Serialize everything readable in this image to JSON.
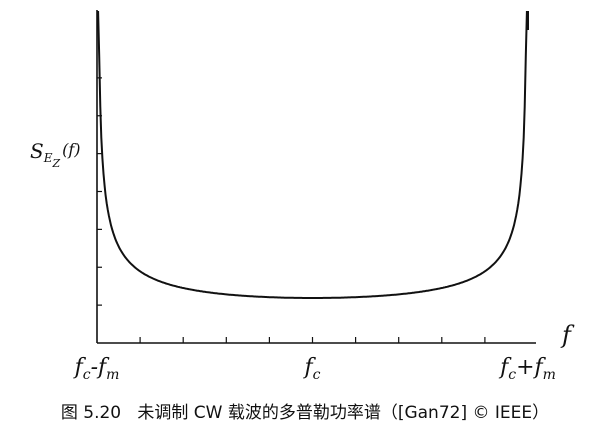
{
  "caption": {
    "figure_no": "图 5.20",
    "text": "未调制 CW 载波的多普勒功率谱（[Gan72] © IEEE）"
  },
  "chart_data": {
    "type": "line",
    "title": "",
    "xlabel": "f",
    "ylabel_base": "S",
    "ylabel_sub": "E",
    "ylabel_subsub": "Z",
    "ylabel_arg": "(f)",
    "x_ticks": [
      {
        "value": -1,
        "base": "f",
        "sub": "c",
        "mid": "-f",
        "sub2": "m"
      },
      {
        "value": 0,
        "base": "f",
        "sub": "c",
        "mid": "",
        "sub2": ""
      },
      {
        "value": 1,
        "base": "f",
        "sub": "c",
        "mid": "+f",
        "sub2": "m"
      }
    ],
    "xlim": [
      -1,
      1
    ],
    "ylim": [
      0,
      1
    ],
    "minor_ticks_x": 9,
    "minor_ticks_y": 7,
    "series": [
      {
        "formula": "1/sqrt(1-((f-fc)/fm)^2)",
        "description": "U-shaped Doppler spectrum, minimum at fc, diverging at fc±fm"
      }
    ]
  }
}
